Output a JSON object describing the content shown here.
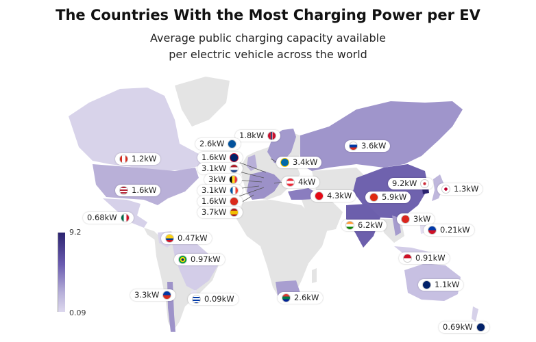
{
  "title": "The Countries With the Most Charging Power per EV",
  "subtitle_line1": "Average public charging capacity available",
  "subtitle_line2": "per electric vehicle across the world",
  "legend": {
    "max": "9.2",
    "min": "0.09",
    "colors": [
      "#2c2470",
      "#ddd8ee"
    ]
  },
  "chart_data": {
    "type": "choropleth",
    "unit": "kW",
    "scale": [
      0.09,
      9.2
    ],
    "countries": [
      {
        "name": "Norway",
        "label": "1.8kW",
        "value": 1.8
      },
      {
        "name": "Iceland",
        "label": "2.6kW",
        "value": 2.6
      },
      {
        "name": "United Kingdom",
        "label": "1.6kW",
        "value": 1.6
      },
      {
        "name": "Netherlands",
        "label": "3.1kW",
        "value": 3.1
      },
      {
        "name": "Belgium",
        "label": "3kW",
        "value": 3.0
      },
      {
        "name": "France",
        "label": "3.1kW",
        "value": 3.1
      },
      {
        "name": "Switzerland",
        "label": "1.6kW",
        "value": 1.6
      },
      {
        "name": "Spain",
        "label": "3.7kW",
        "value": 3.7
      },
      {
        "name": "Sweden",
        "label": "3.4kW",
        "value": 3.4
      },
      {
        "name": "Austria",
        "label": "4kW",
        "value": 4.0
      },
      {
        "name": "Russia",
        "label": "3.6kW",
        "value": 3.6
      },
      {
        "name": "Turkey",
        "label": "4.3kW",
        "value": 4.3
      },
      {
        "name": "China",
        "label": "5.9kW",
        "value": 5.9
      },
      {
        "name": "South Korea",
        "label": "9.2kW",
        "value": 9.2
      },
      {
        "name": "Japan",
        "label": "1.3kW",
        "value": 1.3
      },
      {
        "name": "India",
        "label": "6.2kW",
        "value": 6.2
      },
      {
        "name": "Vietnam",
        "label": "3kW",
        "value": 3.0
      },
      {
        "name": "Philippines",
        "label": "0.21kW",
        "value": 0.21
      },
      {
        "name": "Indonesia",
        "label": "0.91kW",
        "value": 0.91
      },
      {
        "name": "Australia",
        "label": "1.1kW",
        "value": 1.1
      },
      {
        "name": "New Zealand",
        "label": "0.69kW",
        "value": 0.69
      },
      {
        "name": "Canada",
        "label": "1.2kW",
        "value": 1.2
      },
      {
        "name": "United States",
        "label": "1.6kW",
        "value": 1.6
      },
      {
        "name": "Mexico",
        "label": "0.68kW",
        "value": 0.68
      },
      {
        "name": "Colombia",
        "label": "0.47kW",
        "value": 0.47
      },
      {
        "name": "Brazil",
        "label": "0.97kW",
        "value": 0.97
      },
      {
        "name": "Chile",
        "label": "3.3kW",
        "value": 3.3
      },
      {
        "name": "Uruguay",
        "label": "0.09kW",
        "value": 0.09
      },
      {
        "name": "South Africa",
        "label": "2.6kW",
        "value": 2.6
      }
    ]
  },
  "labels": {
    "norway": "1.8kW",
    "iceland": "2.6kW",
    "uk": "1.6kW",
    "netherlands": "3.1kW",
    "belgium": "3kW",
    "france": "3.1kW",
    "switzerland": "1.6kW",
    "spain": "3.7kW",
    "sweden": "3.4kW",
    "austria": "4kW",
    "russia": "3.6kW",
    "turkey": "4.3kW",
    "china": "5.9kW",
    "korea": "9.2kW",
    "japan": "1.3kW",
    "india": "6.2kW",
    "vietnam": "3kW",
    "philippines": "0.21kW",
    "indonesia": "0.91kW",
    "australia": "1.1kW",
    "newzealand": "0.69kW",
    "canada": "1.2kW",
    "usa": "1.6kW",
    "mexico": "0.68kW",
    "colombia": "0.47kW",
    "brazil": "0.97kW",
    "chile": "3.3kW",
    "uruguay": "0.09kW",
    "southafrica": "2.6kW"
  }
}
